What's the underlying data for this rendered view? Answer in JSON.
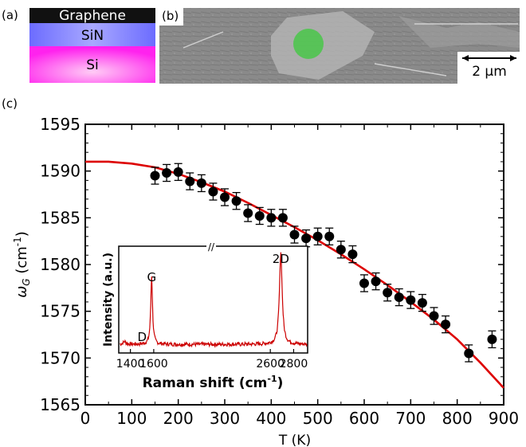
{
  "panels": {
    "a": "(a)",
    "b": "(b)",
    "c": "(c)"
  },
  "stack": {
    "layers": [
      "Graphene",
      "SiN",
      "Si"
    ],
    "colors": {
      "graphene": "#111111",
      "sin": "#7b7bff",
      "si": "#ff22ee"
    }
  },
  "sem": {
    "scalebar": "2 µm",
    "spot_color": "#33cc33"
  },
  "chart_data": [
    {
      "type": "scatter",
      "xlabel": "T (K)",
      "ylabel_main": "ω",
      "ylabel_sub": "G",
      "ylabel_unit": " (cm",
      "ylabel_exp": "-1",
      "ylabel_close": ")",
      "xlim": [
        0,
        900
      ],
      "ylim": [
        1565,
        1595
      ],
      "xticks": [
        0,
        100,
        200,
        300,
        400,
        500,
        600,
        700,
        800,
        900
      ],
      "yticks": [
        1565,
        1570,
        1575,
        1580,
        1585,
        1590,
        1595
      ],
      "points": [
        {
          "x": 150,
          "y": 1589.5,
          "err": 0.9
        },
        {
          "x": 175,
          "y": 1589.8,
          "err": 0.9
        },
        {
          "x": 200,
          "y": 1589.9,
          "err": 0.9
        },
        {
          "x": 225,
          "y": 1588.9,
          "err": 0.9
        },
        {
          "x": 250,
          "y": 1588.7,
          "err": 0.9
        },
        {
          "x": 275,
          "y": 1587.8,
          "err": 0.9
        },
        {
          "x": 300,
          "y": 1587.2,
          "err": 0.9
        },
        {
          "x": 325,
          "y": 1586.8,
          "err": 0.9
        },
        {
          "x": 350,
          "y": 1585.5,
          "err": 0.9
        },
        {
          "x": 375,
          "y": 1585.2,
          "err": 0.9
        },
        {
          "x": 400,
          "y": 1585.0,
          "err": 0.9
        },
        {
          "x": 425,
          "y": 1585.0,
          "err": 0.9
        },
        {
          "x": 450,
          "y": 1583.2,
          "err": 0.9
        },
        {
          "x": 475,
          "y": 1582.8,
          "err": 0.9
        },
        {
          "x": 500,
          "y": 1583.0,
          "err": 0.9
        },
        {
          "x": 525,
          "y": 1583.0,
          "err": 0.9
        },
        {
          "x": 550,
          "y": 1581.6,
          "err": 0.9
        },
        {
          "x": 575,
          "y": 1581.1,
          "err": 0.9
        },
        {
          "x": 600,
          "y": 1578.0,
          "err": 0.9
        },
        {
          "x": 625,
          "y": 1578.2,
          "err": 0.9
        },
        {
          "x": 650,
          "y": 1577.0,
          "err": 0.9
        },
        {
          "x": 675,
          "y": 1576.5,
          "err": 0.9
        },
        {
          "x": 700,
          "y": 1576.2,
          "err": 0.9
        },
        {
          "x": 725,
          "y": 1575.9,
          "err": 0.9
        },
        {
          "x": 750,
          "y": 1574.5,
          "err": 0.9
        },
        {
          "x": 775,
          "y": 1573.6,
          "err": 0.9
        },
        {
          "x": 825,
          "y": 1570.5,
          "err": 0.9
        },
        {
          "x": 875,
          "y": 1572.0,
          "err": 0.9
        }
      ],
      "fit": {
        "color": "#dd0000",
        "x": [
          0,
          50,
          100,
          150,
          200,
          250,
          300,
          350,
          400,
          450,
          500,
          550,
          600,
          650,
          700,
          750,
          800,
          850,
          900
        ],
        "y": [
          1591.0,
          1591.0,
          1590.8,
          1590.4,
          1589.7,
          1588.8,
          1587.8,
          1586.6,
          1585.3,
          1584.0,
          1582.6,
          1581.1,
          1579.5,
          1577.8,
          1576.0,
          1574.1,
          1572.0,
          1569.5,
          1566.8
        ]
      }
    },
    {
      "type": "line",
      "xlabel_main": "Raman shift (cm",
      "xlabel_exp": "-1",
      "xlabel_close": ")",
      "ylabel": "Intensity (a.u.)",
      "xlim": [
        1300,
        2920
      ],
      "xticks": [
        1400,
        1600,
        2600,
        2800
      ],
      "peak_labels": [
        {
          "text": "D",
          "x": 1350
        },
        {
          "text": "G",
          "x": 1582
        },
        {
          "text": "2D",
          "x": 2690
        }
      ],
      "axis_break": "//",
      "line_color": "#cc0000"
    }
  ]
}
